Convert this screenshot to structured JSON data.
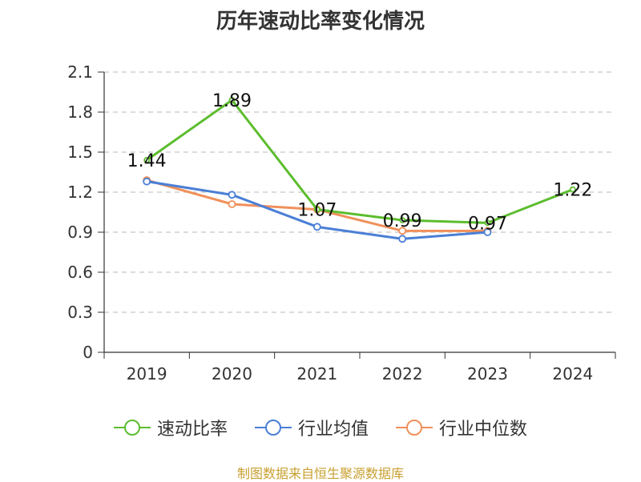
{
  "chart_data": {
    "type": "line",
    "title": "历年速动比率变化情况",
    "categories": [
      "2019",
      "2020",
      "2021",
      "2022",
      "2023",
      "2024"
    ],
    "ylim": [
      0,
      2.1
    ],
    "yticks": [
      "0",
      "0.3",
      "0.6",
      "0.9",
      "1.2",
      "1.5",
      "1.8",
      "2.1"
    ],
    "grid": true,
    "legend_position": "bottom",
    "series": [
      {
        "name": "速动比率",
        "color": "#5cbd2e",
        "values": [
          1.44,
          1.89,
          1.07,
          0.99,
          0.97,
          1.22
        ],
        "labels": [
          "1.44",
          "1.89",
          "1.07",
          "0.99",
          "0.97",
          "1.22"
        ]
      },
      {
        "name": "行业均值",
        "color": "#4a7fd6",
        "values": [
          1.28,
          1.18,
          0.94,
          0.85,
          0.9,
          null
        ]
      },
      {
        "name": "行业中位数",
        "color": "#f0905a",
        "values": [
          1.29,
          1.11,
          1.07,
          0.91,
          0.91,
          null
        ]
      }
    ]
  },
  "footer": {
    "source": "制图数据来自恒生聚源数据库"
  }
}
